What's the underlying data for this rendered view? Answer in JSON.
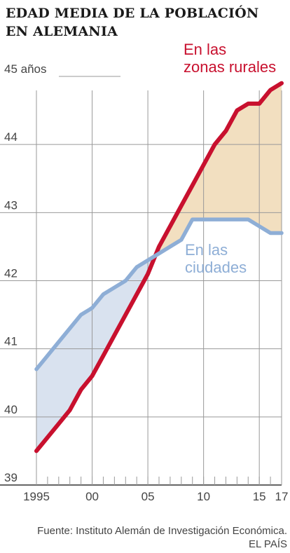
{
  "title": "EDAD MEDIA DE LA POBLACIÓN EN ALEMANIA",
  "source": "Fuente: Instituto Alemán de Investigación Económica.",
  "credit": "EL PAÍS",
  "colors": {
    "rural": "#c8102e",
    "urban": "#8eaed6",
    "urban_fill": "#d9e2ef",
    "rural_fill": "#f2dfc0",
    "grid": "#999999"
  },
  "chart_data": {
    "type": "line",
    "title": "EDAD MEDIA DE LA POBLACIÓN EN ALEMANIA",
    "ylim": [
      39,
      45
    ],
    "xlim": [
      1995,
      2017
    ],
    "y_ticks": [
      {
        "value": 39,
        "label": "39"
      },
      {
        "value": 40,
        "label": "40"
      },
      {
        "value": 41,
        "label": "41"
      },
      {
        "value": 42,
        "label": "42"
      },
      {
        "value": 43,
        "label": "43"
      },
      {
        "value": 44,
        "label": "44"
      },
      {
        "value": 45,
        "label": "45 años"
      }
    ],
    "x_ticks": [
      {
        "value": 1995,
        "label": "1995"
      },
      {
        "value": 2000,
        "label": "00"
      },
      {
        "value": 2005,
        "label": "05"
      },
      {
        "value": 2010,
        "label": "10"
      },
      {
        "value": 2015,
        "label": "15"
      },
      {
        "value": 2017,
        "label": "17"
      }
    ],
    "x": [
      1995,
      1996,
      1997,
      1998,
      1999,
      2000,
      2001,
      2002,
      2003,
      2004,
      2005,
      2006,
      2007,
      2008,
      2009,
      2010,
      2011,
      2012,
      2013,
      2014,
      2015,
      2016,
      2017
    ],
    "series": [
      {
        "name": "En las zonas rurales",
        "values": [
          39.5,
          39.7,
          39.9,
          40.1,
          40.4,
          40.6,
          40.9,
          41.2,
          41.5,
          41.8,
          42.1,
          42.5,
          42.8,
          43.1,
          43.4,
          43.7,
          44.0,
          44.2,
          44.5,
          44.6,
          44.6,
          44.8,
          44.9
        ]
      },
      {
        "name": "En las ciudades",
        "values": [
          40.7,
          40.9,
          41.1,
          41.3,
          41.5,
          41.6,
          41.8,
          41.9,
          42.0,
          42.2,
          42.3,
          42.4,
          42.5,
          42.6,
          42.9,
          42.9,
          42.9,
          42.9,
          42.9,
          42.9,
          42.8,
          42.7,
          42.7
        ]
      }
    ],
    "annotations": [
      {
        "series": 0,
        "lines": [
          "En las",
          "zonas rurales"
        ]
      },
      {
        "series": 1,
        "lines": [
          "En las",
          "ciudades"
        ]
      }
    ]
  }
}
